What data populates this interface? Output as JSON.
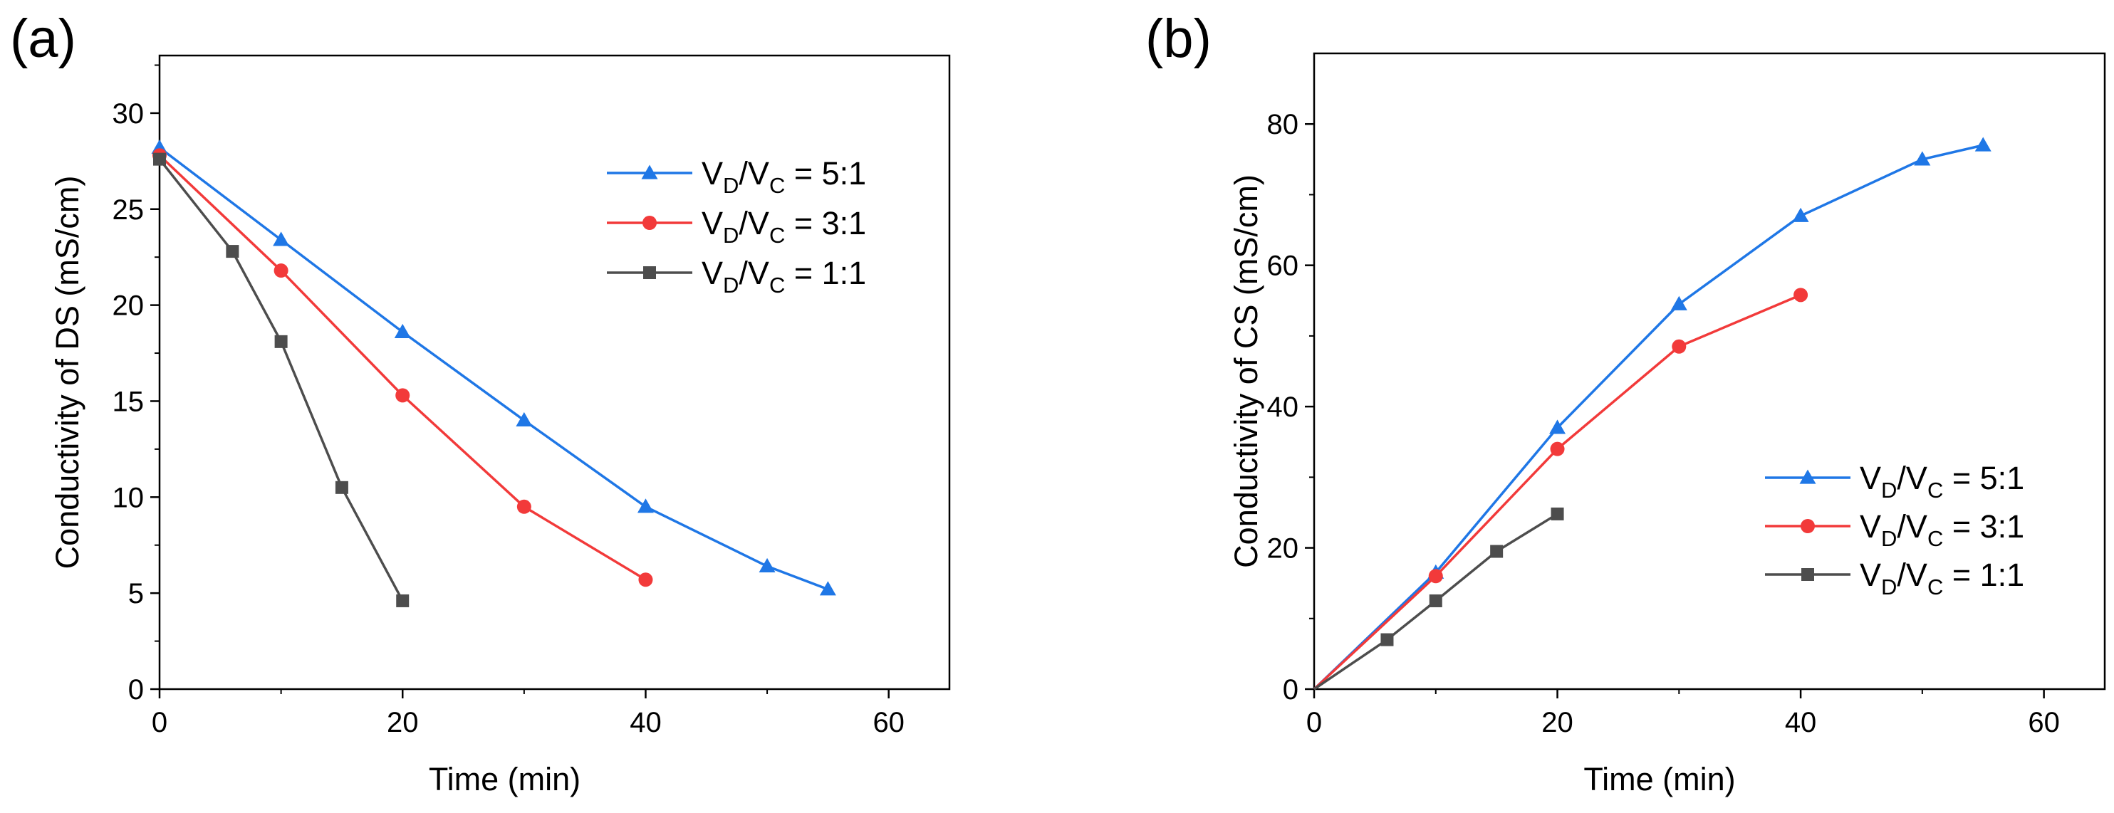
{
  "chart_data": [
    {
      "type": "line",
      "panel_label": "(a)",
      "xlabel": "Time (min)",
      "ylabel": "Conductivity of DS (mS/cm)",
      "xlim": [
        0,
        65
      ],
      "ylim": [
        0,
        33
      ],
      "xticks": [
        0,
        20,
        40,
        60
      ],
      "yticks": [
        0,
        5,
        10,
        15,
        20,
        25,
        30
      ],
      "legend_position": "top-right",
      "series": [
        {
          "name": "VD/VC = 5:1",
          "legend": {
            "v1": "V",
            "s1": "D",
            "sep": "/V",
            "s2": "C",
            "rest": " = 5:1"
          },
          "color": "#1f77e6",
          "marker": "triangle",
          "x": [
            0,
            10,
            20,
            30,
            40,
            50,
            55
          ],
          "y": [
            28.2,
            23.4,
            18.6,
            14.0,
            9.5,
            6.4,
            5.2
          ]
        },
        {
          "name": "VD/VC = 3:1",
          "legend": {
            "v1": "V",
            "s1": "D",
            "sep": "/V",
            "s2": "C",
            "rest": " = 3:1"
          },
          "color": "#f23a3a",
          "marker": "circle",
          "x": [
            0,
            10,
            20,
            30,
            40
          ],
          "y": [
            27.8,
            21.8,
            15.3,
            9.5,
            5.7
          ]
        },
        {
          "name": "VD/VC = 1:1",
          "legend": {
            "v1": "V",
            "s1": "D",
            "sep": "/V",
            "s2": "C",
            "rest": " = 1:1"
          },
          "color": "#4d4d4d",
          "marker": "square",
          "x": [
            0,
            6,
            10,
            15,
            20
          ],
          "y": [
            27.6,
            22.8,
            18.1,
            10.5,
            4.6
          ]
        }
      ]
    },
    {
      "type": "line",
      "panel_label": "(b)",
      "xlabel": "Time (min)",
      "ylabel": "Conductivity of CS (mS/cm)",
      "xlim": [
        0,
        65
      ],
      "ylim": [
        0,
        90
      ],
      "xticks": [
        0,
        20,
        40,
        60
      ],
      "yticks": [
        0,
        20,
        40,
        60,
        80
      ],
      "legend_position": "bottom-right",
      "series": [
        {
          "name": "VD/VC = 5:1",
          "legend": {
            "v1": "V",
            "s1": "D",
            "sep": "/V",
            "s2": "C",
            "rest": " = 5:1"
          },
          "color": "#1f77e6",
          "marker": "triangle",
          "x": [
            0,
            10,
            20,
            30,
            40,
            50,
            55
          ],
          "y": [
            0,
            16.5,
            37.0,
            54.5,
            67.0,
            75.0,
            77.0
          ]
        },
        {
          "name": "VD/VC = 3:1",
          "legend": {
            "v1": "V",
            "s1": "D",
            "sep": "/V",
            "s2": "C",
            "rest": " = 3:1"
          },
          "color": "#f23a3a",
          "marker": "circle",
          "x": [
            0,
            10,
            20,
            30,
            40
          ],
          "y": [
            0,
            16.0,
            34.0,
            48.5,
            55.8
          ]
        },
        {
          "name": "VD/VC = 1:1",
          "legend": {
            "v1": "V",
            "s1": "D",
            "sep": "/V",
            "s2": "C",
            "rest": " = 1:1"
          },
          "color": "#4d4d4d",
          "marker": "square",
          "x": [
            0,
            6,
            10,
            15,
            20
          ],
          "y": [
            0,
            7.0,
            12.5,
            19.5,
            24.8
          ]
        }
      ]
    }
  ]
}
